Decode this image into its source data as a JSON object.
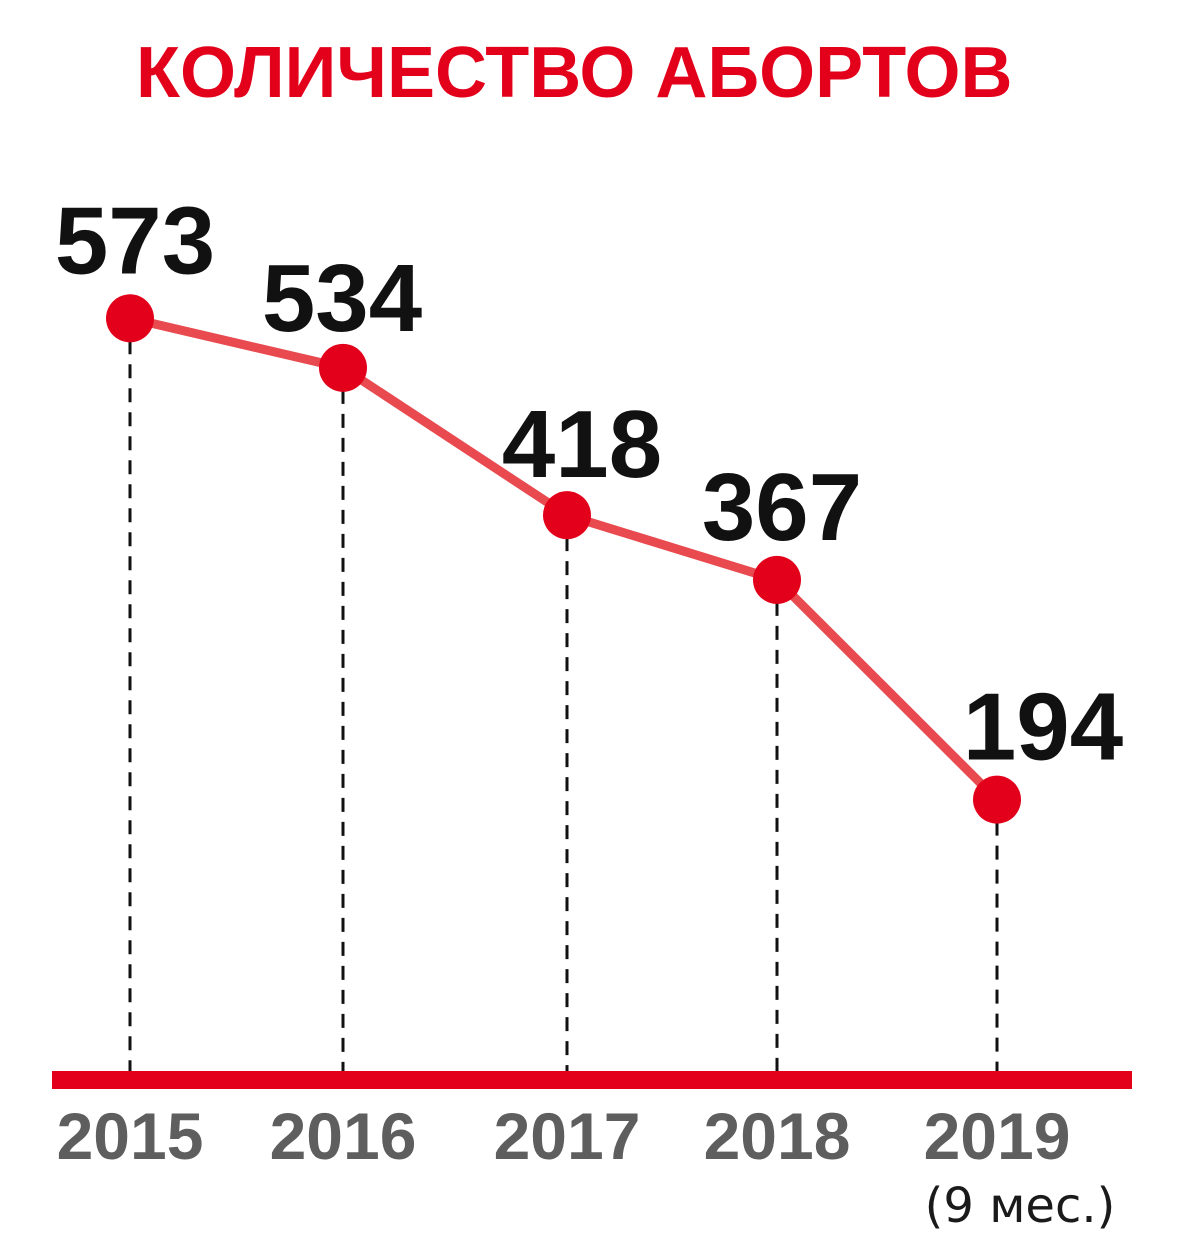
{
  "chart_data": {
    "type": "line",
    "title": "КОЛИЧЕСТВО АБОРТОВ",
    "categories": [
      "2015",
      "2016",
      "2017",
      "2018",
      "2019"
    ],
    "category_notes": [
      "",
      "",
      "",
      "",
      "(9 мес.)"
    ],
    "values": [
      573,
      534,
      418,
      367,
      194
    ],
    "data_labels": [
      "573",
      "534",
      "418",
      "367",
      "194"
    ],
    "grid": false,
    "legend": "none"
  },
  "colors": {
    "title": "#e3001b",
    "line": "#e84a4f",
    "marker": "#e3001b",
    "baseline": "#e3001b",
    "guide": "#111111",
    "year_text": "#5e5e5e",
    "value_text": "#111111"
  }
}
